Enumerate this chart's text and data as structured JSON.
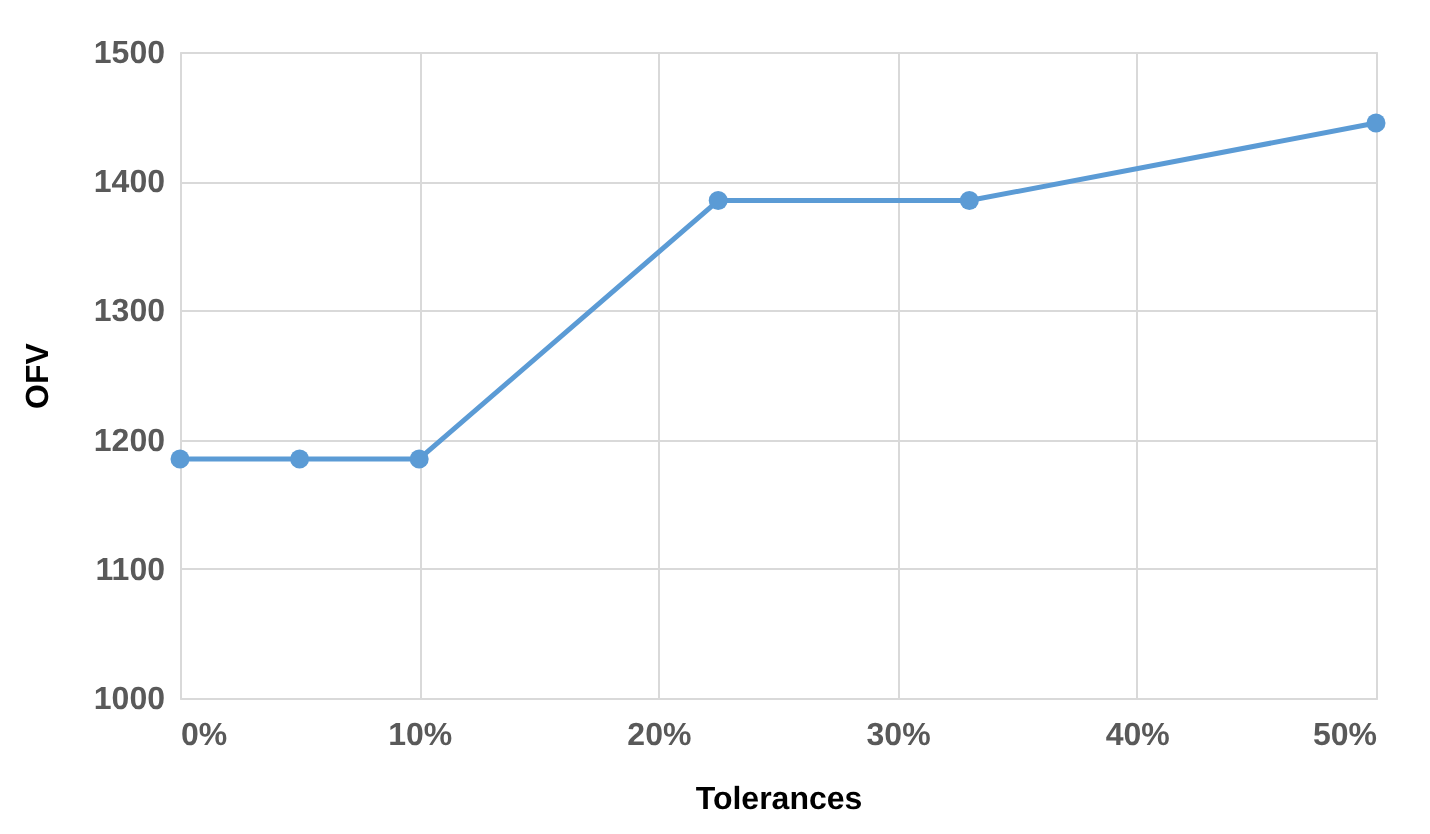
{
  "chart_data": {
    "type": "line",
    "xlabel": "Tolerances",
    "ylabel": "OFV",
    "x": [
      0,
      5,
      10,
      22.5,
      33,
      50
    ],
    "series": [
      {
        "color": "#5b9bd5",
        "values": [
          1185,
          1185,
          1185,
          1385,
          1385,
          1445
        ]
      }
    ],
    "xlim": [
      0,
      50
    ],
    "xticks": [
      {
        "value": 0,
        "label": "0%"
      },
      {
        "value": 10,
        "label": "10%"
      },
      {
        "value": 20,
        "label": "20%"
      },
      {
        "value": 30,
        "label": "30%"
      },
      {
        "value": 40,
        "label": "40%"
      },
      {
        "value": 50,
        "label": "50%"
      }
    ],
    "ylim": [
      1000,
      1500
    ],
    "yticks": [
      1000,
      1100,
      1200,
      1300,
      1400,
      1500
    ],
    "grid": true,
    "marker": "circle",
    "line_style": "solid"
  }
}
